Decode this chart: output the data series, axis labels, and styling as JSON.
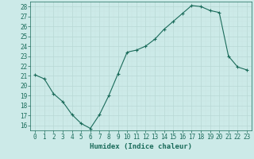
{
  "x": [
    0,
    1,
    2,
    3,
    4,
    5,
    6,
    7,
    8,
    9,
    10,
    11,
    12,
    13,
    14,
    15,
    16,
    17,
    18,
    19,
    20,
    21,
    22,
    23
  ],
  "y": [
    21.1,
    20.7,
    19.2,
    18.4,
    17.1,
    16.2,
    15.7,
    17.1,
    19.0,
    21.2,
    23.4,
    23.6,
    24.0,
    24.7,
    25.7,
    26.5,
    27.3,
    28.1,
    28.0,
    27.6,
    27.4,
    23.0,
    21.9,
    21.6
  ],
  "xlabel": "Humidex (Indice chaleur)",
  "xlim": [
    -0.5,
    23.5
  ],
  "ylim": [
    15.5,
    28.5
  ],
  "yticks": [
    16,
    17,
    18,
    19,
    20,
    21,
    22,
    23,
    24,
    25,
    26,
    27,
    28
  ],
  "xticks": [
    0,
    1,
    2,
    3,
    4,
    5,
    6,
    7,
    8,
    9,
    10,
    11,
    12,
    13,
    14,
    15,
    16,
    17,
    18,
    19,
    20,
    21,
    22,
    23
  ],
  "bg_color": "#cceae8",
  "grid_major_color": "#b8d8d5",
  "grid_minor_color": "#c8e4e2",
  "line_color": "#1a6b5a",
  "marker_color": "#1a6b5a",
  "label_color": "#1a6b5a",
  "tick_color": "#1a6b5a",
  "tick_fontsize": 5.5,
  "label_fontsize": 6.5
}
